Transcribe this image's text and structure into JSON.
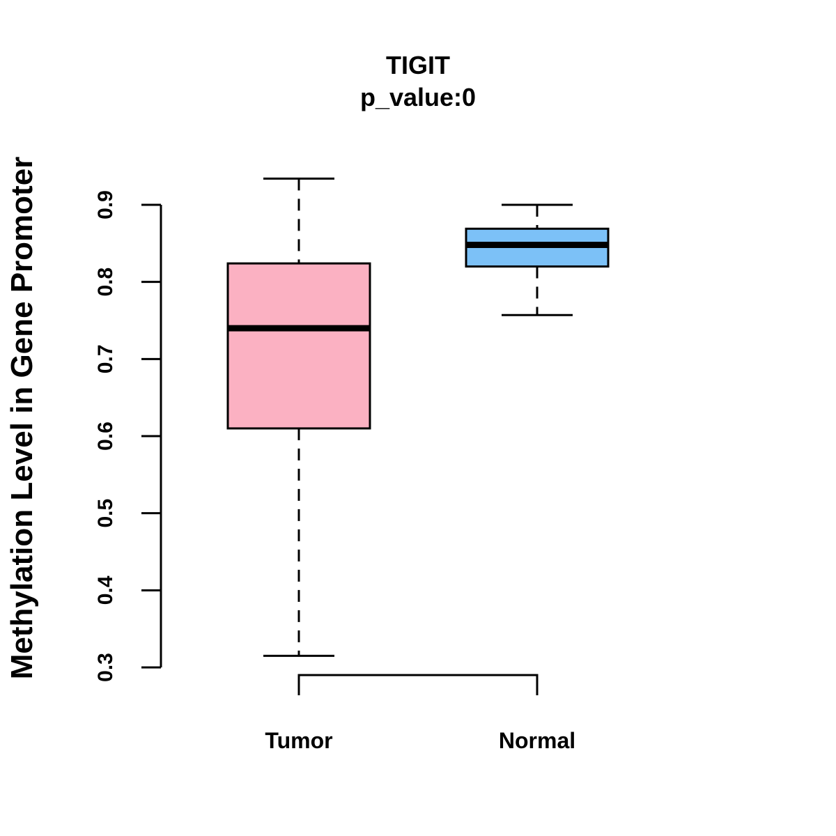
{
  "chart_data": {
    "type": "boxplot",
    "title": "TIGIT",
    "subtitle": "p_value:0",
    "xlabel": "",
    "ylabel": "Methylation Level in Gene Promoter",
    "ylim": [
      0.3,
      0.9
    ],
    "yticks": [
      "0.3",
      "0.4",
      "0.5",
      "0.6",
      "0.7",
      "0.8",
      "0.9"
    ],
    "categories": [
      "Tumor",
      "Normal"
    ],
    "boxes": [
      {
        "name": "Tumor",
        "min": 0.315,
        "q1": 0.61,
        "median": 0.74,
        "q3": 0.824,
        "max": 0.934,
        "color": "#FBB1C2"
      },
      {
        "name": "Normal",
        "min": 0.757,
        "q1": 0.82,
        "median": 0.848,
        "q3": 0.869,
        "max": 0.9,
        "color": "#7CC1F7"
      }
    ],
    "comparison_bracket": [
      "Tumor",
      "Normal"
    ]
  }
}
